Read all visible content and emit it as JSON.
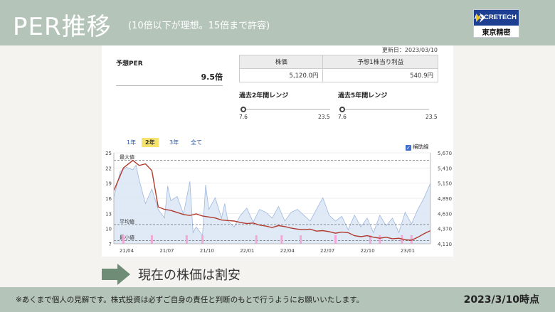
{
  "header": {
    "title": "PER推移",
    "subtitle": "(10倍以下が理想。15倍まで許容)",
    "logo_brand": "ACCRETECH",
    "logo_company": "東京精密"
  },
  "card": {
    "updated": "更新日：2023/03/10",
    "forecast_per_label": "予想PER",
    "forecast_per_value": "9.5倍",
    "table": {
      "headers": [
        "株価",
        "予想1株当り利益"
      ],
      "values": [
        "5,120.0円",
        "540.9円"
      ]
    },
    "range_2y": {
      "label": "過去2年間レンジ",
      "min": "7.6",
      "max": "23.5"
    },
    "range_5y": {
      "label": "過去5年間レンジ",
      "min": "7.6",
      "max": "23.5"
    },
    "tabs": [
      "1年",
      "2年",
      "3年",
      "全て"
    ],
    "active_tab": "2年",
    "aux_line_label": "補助線"
  },
  "chart_data": {
    "type": "line",
    "title": "",
    "x_ticks": [
      "21/04",
      "21/07",
      "21/10",
      "22/01",
      "22/04",
      "22/07",
      "22/10",
      "23/01"
    ],
    "y_left_ticks": [
      "25",
      "22",
      "19",
      "16",
      "13",
      "10",
      "7"
    ],
    "y_right_ticks": [
      "5,670",
      "5,410",
      "5,150",
      "4,890",
      "4,630",
      "4,370",
      "4,110"
    ],
    "ylim_left": [
      7,
      25
    ],
    "ylim_right": [
      4110,
      5670
    ],
    "reference_lines": [
      {
        "label": "最大値",
        "value": 23.5
      },
      {
        "label": "平均値",
        "value": 10.8
      },
      {
        "label": "最小値",
        "value": 7.6
      }
    ],
    "grid": true,
    "series": [
      {
        "kind": "PER (left axis)",
        "color": "#b03a2e",
        "x": [
          0,
          3,
          6,
          8,
          10,
          12,
          14,
          16,
          18,
          20,
          22,
          24,
          26,
          28,
          30,
          32,
          34,
          36,
          38,
          40,
          42,
          44,
          46,
          48,
          50,
          52,
          54,
          56,
          58,
          60,
          62,
          64,
          66,
          68,
          70,
          72,
          74,
          76,
          78,
          80,
          82,
          84,
          86,
          88,
          90,
          92,
          94,
          96,
          98,
          100
        ],
        "y": [
          17.5,
          22,
          23.5,
          22.5,
          22.8,
          21.5,
          14.3,
          13.8,
          13.6,
          13.2,
          12.8,
          12.6,
          12.9,
          12.5,
          12.3,
          12.1,
          11.7,
          11.6,
          11.5,
          11.2,
          11,
          11.1,
          10.7,
          10.5,
          10.2,
          10.6,
          10.4,
          10.1,
          9.9,
          9.8,
          9.9,
          9.5,
          9.6,
          9.4,
          9.1,
          9.3,
          9.2,
          8.6,
          8.4,
          8.6,
          8.3,
          8.1,
          8.3,
          8,
          8.1,
          7.8,
          7.7,
          8.3,
          9,
          9.6
        ]
      },
      {
        "kind": "株価 (right axis)",
        "color": "#9fb8de",
        "x": [
          0,
          2,
          4,
          6,
          7,
          8,
          10,
          12,
          14,
          16,
          17,
          18,
          20,
          22,
          24,
          25,
          26,
          28,
          29,
          30,
          32,
          34,
          35,
          36,
          38,
          40,
          42,
          44,
          46,
          48,
          50,
          52,
          54,
          56,
          58,
          60,
          62,
          64,
          66,
          68,
          70,
          72,
          74,
          76,
          78,
          80,
          82,
          84,
          86,
          88,
          90,
          92,
          94,
          96,
          98,
          100
        ],
        "y": [
          4900,
          5350,
          5420,
          5380,
          5460,
          5200,
          4800,
          5050,
          4700,
          4550,
          5100,
          4850,
          4920,
          4620,
          5180,
          4300,
          4400,
          4250,
          5120,
          4700,
          4900,
          4550,
          4800,
          4500,
          4400,
          4600,
          4720,
          4480,
          4700,
          4650,
          4550,
          4750,
          4500,
          4650,
          4700,
          4600,
          4500,
          4700,
          4900,
          4600,
          4500,
          4580,
          4350,
          4600,
          4400,
          4550,
          4300,
          4600,
          4420,
          4550,
          4300,
          4650,
          4450,
          4700,
          4900,
          5150
        ]
      }
    ],
    "earnings_markers_color": "#f2a8d8",
    "earnings_markers_x": [
      3,
      12,
      23,
      28,
      45,
      53,
      59,
      70,
      81,
      84,
      91,
      94
    ]
  },
  "main": {
    "conclusion": "現在の株価は割安"
  },
  "footer": {
    "note": "※あくまで個人の見解です。株式投資は必ずご自身の責任と判断のもとで行うようにお願いいたします。",
    "as_of": "2023/3/10時点"
  },
  "colors": {
    "band": "#b4c4b8",
    "arrow": "#6e8c76",
    "active_tab": "#f5e36e",
    "link": "#2b5aa8",
    "logo_blue": "#1d3f91"
  }
}
